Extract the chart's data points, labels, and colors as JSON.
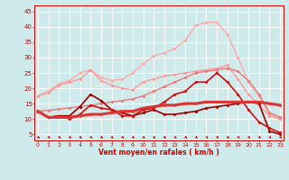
{
  "x": [
    0,
    1,
    2,
    3,
    4,
    5,
    6,
    7,
    8,
    9,
    10,
    11,
    12,
    13,
    14,
    15,
    16,
    17,
    18,
    19,
    20,
    21,
    22,
    23
  ],
  "background_color": "#ceeaea",
  "grid_color": "#ffffff",
  "xlabel": "Vent moyen/en rafales ( km/h )",
  "xlabel_color": "#cc0000",
  "tick_color": "#cc0000",
  "yticks": [
    5,
    10,
    15,
    20,
    25,
    30,
    35,
    40,
    45
  ],
  "ylim": [
    3,
    47
  ],
  "xlim": [
    -0.3,
    23.3
  ],
  "lines": [
    {
      "y": [
        17.5,
        19.0,
        21.5,
        22.5,
        25.0,
        26.0,
        23.5,
        22.5,
        23.0,
        25.0,
        28.0,
        30.5,
        31.5,
        33.0,
        35.5,
        40.5,
        41.5,
        41.5,
        37.5,
        30.0,
        22.0,
        17.5,
        11.5,
        10.0
      ],
      "color": "#ffaaaa",
      "lw": 1.0,
      "marker": "D",
      "ms": 2.0,
      "zorder": 1
    },
    {
      "y": [
        17.5,
        18.5,
        21.0,
        22.0,
        23.0,
        26.0,
        22.5,
        21.0,
        20.0,
        19.5,
        22.0,
        23.0,
        24.0,
        24.5,
        25.0,
        25.5,
        26.0,
        26.5,
        27.5,
        23.0,
        18.0,
        14.5,
        11.0,
        10.0
      ],
      "color": "#ff9999",
      "lw": 1.0,
      "marker": "D",
      "ms": 2.0,
      "zorder": 2
    },
    {
      "y": [
        12.5,
        12.8,
        13.2,
        13.6,
        14.0,
        14.5,
        15.0,
        15.5,
        16.0,
        16.5,
        17.5,
        19.0,
        20.5,
        22.0,
        23.5,
        25.0,
        25.5,
        26.0,
        26.5,
        25.5,
        22.5,
        18.0,
        12.0,
        10.5
      ],
      "color": "#ee7777",
      "lw": 1.0,
      "marker": "D",
      "ms": 2.0,
      "zorder": 3
    },
    {
      "y": [
        12.5,
        10.5,
        10.5,
        10.5,
        11.0,
        11.5,
        11.5,
        12.0,
        12.5,
        12.5,
        13.5,
        14.0,
        14.5,
        14.5,
        15.0,
        15.0,
        15.5,
        15.5,
        15.5,
        15.5,
        15.5,
        15.5,
        15.0,
        14.5
      ],
      "color": "#dd3333",
      "lw": 2.2,
      "marker": "D",
      "ms": 1.8,
      "zorder": 6
    },
    {
      "y": [
        12.5,
        10.5,
        11.0,
        10.0,
        11.5,
        14.5,
        13.5,
        13.0,
        11.0,
        11.0,
        13.0,
        13.5,
        15.5,
        18.0,
        19.0,
        22.0,
        22.0,
        25.0,
        22.0,
        18.0,
        13.0,
        9.0,
        7.0,
        5.5
      ],
      "color": "#cc1111",
      "lw": 1.2,
      "marker": "D",
      "ms": 2.0,
      "zorder": 5
    },
    {
      "y": [
        12.5,
        10.5,
        11.0,
        11.0,
        14.0,
        18.0,
        16.0,
        13.0,
        12.0,
        11.0,
        12.0,
        13.0,
        11.5,
        11.5,
        12.0,
        12.5,
        13.5,
        14.0,
        14.5,
        15.0,
        15.5,
        15.0,
        6.0,
        5.0
      ],
      "color": "#990000",
      "lw": 1.2,
      "marker": "D",
      "ms": 2.0,
      "zorder": 4
    }
  ],
  "arrow_color": "#cc0000"
}
